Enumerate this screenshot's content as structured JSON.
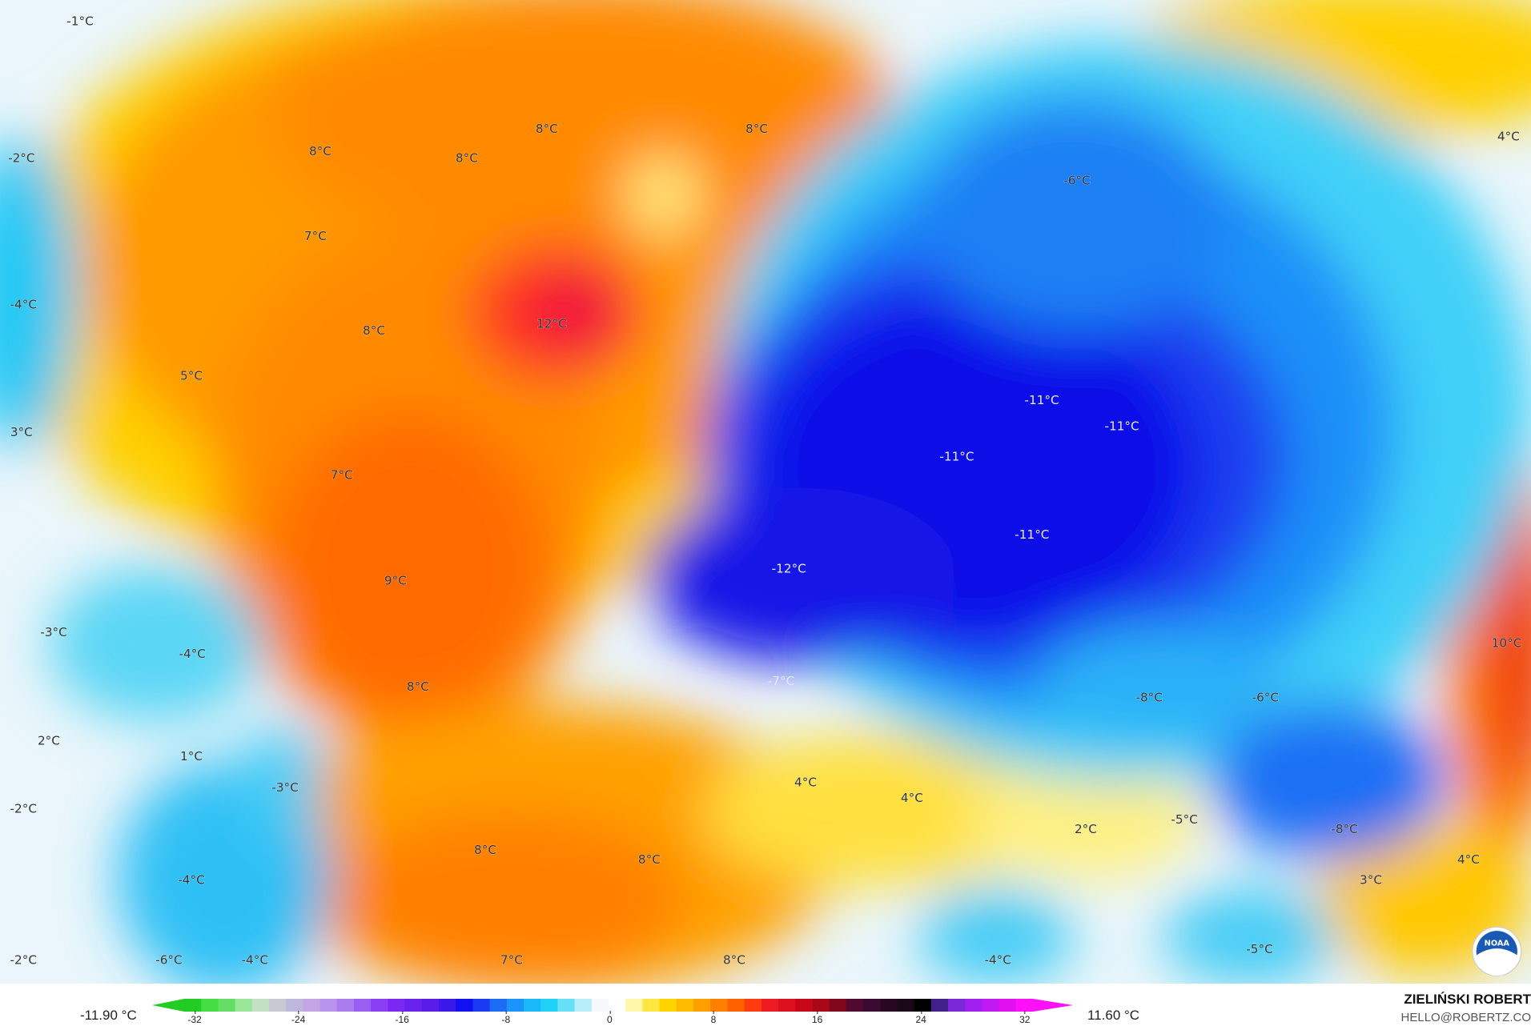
{
  "map": {
    "variable": "temperature anomaly",
    "unit": "°C",
    "labels": [
      "-1°C",
      "-2°C",
      "8°C",
      "8°C",
      "8°C",
      "8°C",
      "-6°C",
      "4°C",
      "7°C",
      "-4°C",
      "12°C",
      "8°C",
      "5°C",
      "-11°C",
      "-11°C",
      "3°C",
      "-11°C",
      "7°C",
      "-11°C",
      "-12°C",
      "9°C",
      "-3°C",
      "-4°C",
      "10°C",
      "8°C",
      "-7°C",
      "-8°C",
      "-6°C",
      "2°C",
      "1°C",
      "4°C",
      "4°C",
      "-3°C",
      "-2°C",
      "-5°C",
      "2°C",
      "-8°C",
      "8°C",
      "8°C",
      "4°C",
      "-4°C",
      "3°C",
      "-2°C",
      "-6°C",
      "-4°C",
      "7°C",
      "8°C",
      "-4°C",
      "-5°C"
    ],
    "logo": "NOAA"
  },
  "legend": {
    "min_label": "-11.90 °C",
    "max_label": "11.60 °C",
    "ticks": [
      "-32",
      "-24",
      "-16",
      "-8",
      "0",
      "8",
      "16",
      "24",
      "32"
    ],
    "colors": [
      "#22cc22",
      "#44dd44",
      "#66dd66",
      "#99e699",
      "#c4e0c4",
      "#c8c8d0",
      "#bdb7dc",
      "#c4a6e6",
      "#b894ee",
      "#a97cf0",
      "#9a5ef3",
      "#8a3ef5",
      "#7b28f2",
      "#6a22ee",
      "#5a1ce8",
      "#3a18e8",
      "#1010f0",
      "#1a3af2",
      "#1c6cf6",
      "#1a94f8",
      "#1ab8f8",
      "#22d2f6",
      "#66e0f6",
      "#b6eefa",
      "#f6f8fa",
      "#ffffff",
      "#fff6a8",
      "#ffe640",
      "#ffd400",
      "#ffbb00",
      "#ff9f00",
      "#ff8000",
      "#ff6000",
      "#ff3c10",
      "#ee1c22",
      "#dd1020",
      "#c80818",
      "#a80818",
      "#80061a",
      "#500a30",
      "#3a0a32",
      "#280820",
      "#180818",
      "#000000",
      "#40208a",
      "#7a28d8",
      "#a020f0",
      "#c018f0",
      "#e010f0",
      "#ff10f8"
    ]
  },
  "author": {
    "name": "ZIELIŃSKI ROBERT",
    "email": "HELLO@ROBERTZ.CO"
  }
}
